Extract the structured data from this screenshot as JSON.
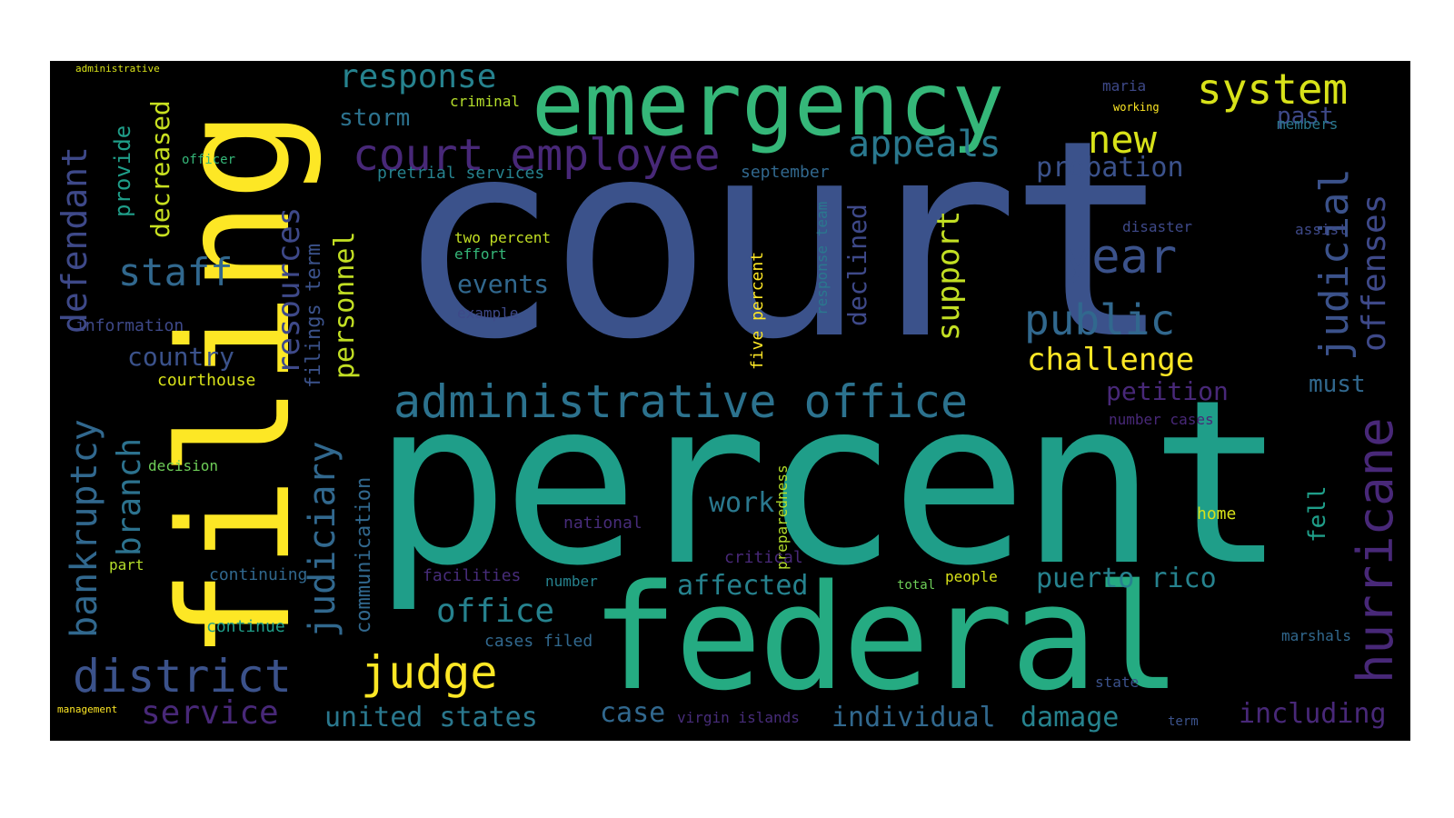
{
  "palette": {
    "background": "#000000",
    "indigo": "#3b528b",
    "purple": "#482878",
    "darkpurple": "#440154",
    "blue": "#31688e",
    "teal": "#26828e",
    "green": "#1f9e89",
    "lightgreen": "#35b779",
    "lime": "#6ece58",
    "yellowgreen": "#b5de2b",
    "yellow": "#fde725"
  },
  "words": [
    {
      "text": "court",
      "color": "#3b528b",
      "icon": "none"
    },
    {
      "text": "percent",
      "color": "#1f9e89"
    },
    {
      "text": "filing",
      "color": "#fde725"
    },
    {
      "text": "federal",
      "color": "#25ab82"
    },
    {
      "text": "emergency",
      "color": "#35b779"
    },
    {
      "text": "administrative office",
      "color": "#2c728e"
    },
    {
      "text": "court employee",
      "color": "#482878"
    },
    {
      "text": "hurricane",
      "color": "#482878"
    },
    {
      "text": "district",
      "color": "#3b528b"
    },
    {
      "text": "judge",
      "color": "#fde725"
    },
    {
      "text": "system",
      "color": "#d8e219"
    },
    {
      "text": "response",
      "color": "#26828e"
    },
    {
      "text": "appeals",
      "color": "#2a788e"
    },
    {
      "text": "new",
      "color": "#d8e219"
    },
    {
      "text": "year",
      "color": "#3b528b"
    },
    {
      "text": "public",
      "color": "#31688e"
    },
    {
      "text": "staff",
      "color": "#31688e"
    },
    {
      "text": "judicial",
      "color": "#3b528b"
    },
    {
      "text": "offenses",
      "color": "#3e4989"
    },
    {
      "text": "defendant",
      "color": "#3e4989"
    },
    {
      "text": "bankruptcy",
      "color": "#31688e"
    },
    {
      "text": "branch",
      "color": "#2c728e"
    },
    {
      "text": "judiciary",
      "color": "#31688e"
    },
    {
      "text": "resources",
      "color": "#3e4989"
    },
    {
      "text": "personnel",
      "color": "#c2df23"
    },
    {
      "text": "filings term",
      "color": "#3b528b"
    },
    {
      "text": "support",
      "color": "#c2df23"
    },
    {
      "text": "declined",
      "color": "#3e4989"
    },
    {
      "text": "challenge",
      "color": "#fde725"
    },
    {
      "text": "probation",
      "color": "#3b528b"
    },
    {
      "text": "petition",
      "color": "#482878"
    },
    {
      "text": "must",
      "color": "#31688e"
    },
    {
      "text": "past",
      "color": "#3e4989"
    },
    {
      "text": "storm",
      "color": "#2c728e"
    },
    {
      "text": "criminal",
      "color": "#b5de2b"
    },
    {
      "text": "decreased",
      "color": "#c8e020"
    },
    {
      "text": "provide",
      "color": "#1f9e89"
    },
    {
      "text": "country",
      "color": "#3b528b"
    },
    {
      "text": "courthouse",
      "color": "#d8e219"
    },
    {
      "text": "communication",
      "color": "#31688e"
    },
    {
      "text": "office",
      "color": "#26828e"
    },
    {
      "text": "affected",
      "color": "#26828e"
    },
    {
      "text": "puerto rico",
      "color": "#26828e"
    },
    {
      "text": "work",
      "color": "#2a788e"
    },
    {
      "text": "service",
      "color": "#482878"
    },
    {
      "text": "united states",
      "color": "#2a788e"
    },
    {
      "text": "case",
      "color": "#31688e"
    },
    {
      "text": "individual",
      "color": "#31688e"
    },
    {
      "text": "damage",
      "color": "#26828e"
    },
    {
      "text": "including",
      "color": "#482878"
    },
    {
      "text": "fell",
      "color": "#1f9e89"
    },
    {
      "text": "events",
      "color": "#31688e"
    },
    {
      "text": "pretrial services",
      "color": "#26828e"
    },
    {
      "text": "september",
      "color": "#31688e"
    },
    {
      "text": "two percent",
      "color": "#c2df23"
    },
    {
      "text": "effort",
      "color": "#35b779"
    },
    {
      "text": "example",
      "color": "#3e4989"
    },
    {
      "text": "five percent",
      "color": "#fde725"
    },
    {
      "text": "response team",
      "color": "#2a788e"
    },
    {
      "text": "preparedness",
      "color": "#b5de2b"
    },
    {
      "text": "information",
      "color": "#3e4989"
    },
    {
      "text": "decision",
      "color": "#6ece58"
    },
    {
      "text": "continuing",
      "color": "#31688e"
    },
    {
      "text": "continue",
      "color": "#1f9e89"
    },
    {
      "text": "part",
      "color": "#b5de2b"
    },
    {
      "text": "facilities",
      "color": "#472c7a"
    },
    {
      "text": "number",
      "color": "#26828e"
    },
    {
      "text": "national",
      "color": "#472c7a"
    },
    {
      "text": "critical",
      "color": "#482878"
    },
    {
      "text": "cases filed",
      "color": "#31688e"
    },
    {
      "text": "virgin islands",
      "color": "#472c7a"
    },
    {
      "text": "people",
      "color": "#d8e219"
    },
    {
      "text": "total",
      "color": "#6ece58"
    },
    {
      "text": "home",
      "color": "#d8e219"
    },
    {
      "text": "number cases",
      "color": "#482878"
    },
    {
      "text": "disaster",
      "color": "#3e4989"
    },
    {
      "text": "assist",
      "color": "#3e4989"
    },
    {
      "text": "members",
      "color": "#2a788e"
    },
    {
      "text": "maria",
      "color": "#3e4989"
    },
    {
      "text": "working",
      "color": "#fde725"
    },
    {
      "text": "officer",
      "color": "#35b779"
    },
    {
      "text": "administrative",
      "color": "#d8e219"
    },
    {
      "text": "state",
      "color": "#3b528b"
    },
    {
      "text": "term",
      "color": "#3b528b"
    },
    {
      "text": "marshals",
      "color": "#31688e"
    },
    {
      "text": "management",
      "color": "#fde725"
    }
  ]
}
